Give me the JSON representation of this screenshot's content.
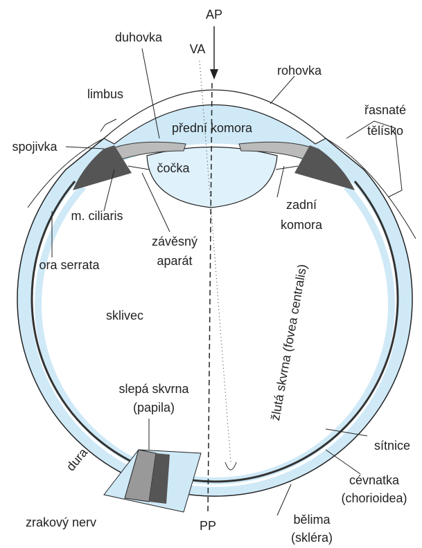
{
  "labels": {
    "ap": "AP",
    "va": "VA",
    "duhovka": "duhovka",
    "rohovka": "rohovka",
    "limbus": "limbus",
    "rasnate": "řasnaté",
    "telisko": "tělísko",
    "predni_komora": "přední komora",
    "spojivka": "spojivka",
    "cocka": "čočka",
    "m_ciliaris": "m. ciliaris",
    "zadni": "zadní",
    "komora": "komora",
    "zavesny": "závěsný",
    "aparat": "aparát",
    "ora_serrata": "ora serrata",
    "sklivec": "sklivec",
    "slepa_skvrna": "slepá skvrna",
    "papila": "(papila)",
    "zluta_skvrna": "žlutá skvrna (fovea centralis)",
    "sitnice": "sítnice",
    "dura": "dura",
    "cevnatka": "cévnatka",
    "chorioidea": "(chorioidea)",
    "zrakovy_nerv": "zrakový nerv",
    "pp": "PP",
    "belima": "bělima",
    "sklera": "(skléra)"
  }
}
